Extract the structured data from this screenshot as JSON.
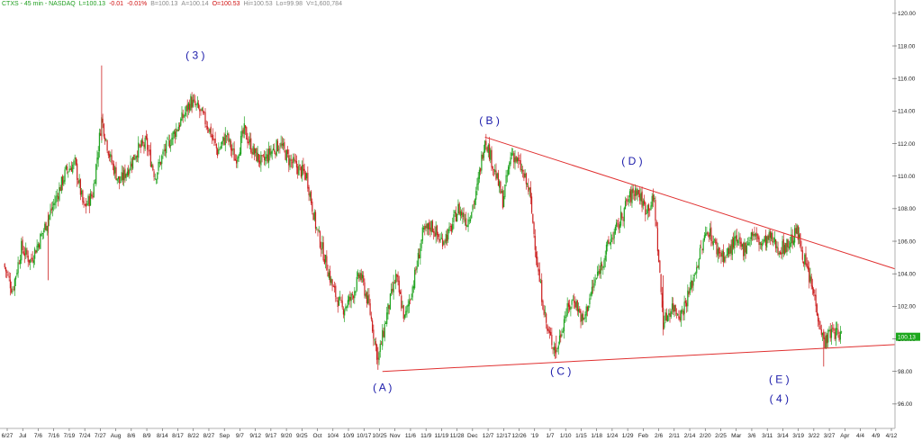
{
  "header": {
    "symbol": "CTXS - 45 min - NASDAQ",
    "last": "L=100.13",
    "change": "-0.01",
    "change_pct": "-0.01%",
    "bid": "B=100.13",
    "ask": "A=100.14",
    "open": "O=100.53",
    "high": "Hi=100.53",
    "low": "Lo=99.98",
    "volume": "V=1,600,784",
    "colors": {
      "symbol": "#1e9e1e",
      "last": "#1e9e1e",
      "change": "#d01010",
      "neutral": "#8a8a8a",
      "open": "#d01010"
    }
  },
  "chart_data": {
    "type": "candlestick",
    "y_axis": {
      "side": "right",
      "ylim": [
        94.5,
        120.6
      ],
      "ticks": [
        "96.00",
        "98.00",
        "100.00",
        "102.00",
        "104.00",
        "106.00",
        "108.00",
        "110.00",
        "112.00",
        "114.00",
        "116.00",
        "118.00",
        "120.00"
      ]
    },
    "last_price_label": "100.13",
    "x_ticks": [
      "6/27",
      "Jul",
      "7/6",
      "7/16",
      "7/19",
      "7/24",
      "7/27",
      "Aug",
      "8/6",
      "8/9",
      "8/14",
      "8/17",
      "8/22",
      "8/27",
      "Sep",
      "9/7",
      "9/12",
      "9/17",
      "9/20",
      "9/25",
      "Oct",
      "10/4",
      "10/9",
      "10/17",
      "10/25",
      "Nov",
      "11/6",
      "11/9",
      "11/19",
      "11/28",
      "Dec",
      "12/7",
      "12/17",
      "12/26",
      "'19",
      "1/7",
      "1/10",
      "1/15",
      "1/18",
      "1/24",
      "1/29",
      "Feb",
      "2/6",
      "2/11",
      "2/14",
      "2/20",
      "2/25",
      "Mar",
      "3/6",
      "3/11",
      "3/14",
      "3/19",
      "3/22",
      "3/27",
      "Apr",
      "4/4",
      "4/9",
      "4/12"
    ],
    "x_index_range": [
      0,
      100
    ],
    "price_path": [
      [
        0,
        104.6
      ],
      [
        1,
        103.0
      ],
      [
        2,
        105.6
      ],
      [
        3,
        104.8
      ],
      [
        4,
        106.0
      ],
      [
        5,
        107.4
      ],
      [
        6,
        108.8
      ],
      [
        7,
        110.3
      ],
      [
        8,
        110.8
      ],
      [
        9,
        108.0
      ],
      [
        10,
        108.9
      ],
      [
        11,
        113.5
      ],
      [
        12,
        111.0
      ],
      [
        13,
        109.6
      ],
      [
        14,
        110.5
      ],
      [
        15,
        111.6
      ],
      [
        16,
        112.0
      ],
      [
        17,
        110.0
      ],
      [
        18,
        111.5
      ],
      [
        19,
        112.5
      ],
      [
        20,
        113.5
      ],
      [
        21,
        114.6
      ],
      [
        22,
        114.0
      ],
      [
        23,
        113.0
      ],
      [
        24,
        111.5
      ],
      [
        25,
        112.5
      ],
      [
        26,
        111.0
      ],
      [
        27,
        112.8
      ],
      [
        28,
        111.5
      ],
      [
        29,
        110.8
      ],
      [
        30,
        111.5
      ],
      [
        31,
        112.0
      ],
      [
        32,
        111.0
      ],
      [
        33,
        110.5
      ],
      [
        34,
        110.0
      ],
      [
        35,
        107.0
      ],
      [
        36,
        105.0
      ],
      [
        37,
        103.0
      ],
      [
        38,
        101.8
      ],
      [
        39,
        102.5
      ],
      [
        40,
        104.0
      ],
      [
        41,
        102.0
      ],
      [
        42,
        98.7
      ],
      [
        43,
        101.5
      ],
      [
        44,
        103.8
      ],
      [
        45,
        101.2
      ],
      [
        46,
        103.5
      ],
      [
        47,
        106.4
      ],
      [
        48,
        107.0
      ],
      [
        49,
        106.0
      ],
      [
        50,
        106.5
      ],
      [
        51,
        108.0
      ],
      [
        52,
        107.2
      ],
      [
        53,
        108.8
      ],
      [
        54,
        112.4
      ],
      [
        55,
        110.5
      ],
      [
        56,
        108.5
      ],
      [
        57,
        111.5
      ],
      [
        58,
        110.5
      ],
      [
        59,
        109.0
      ],
      [
        60,
        104.0
      ],
      [
        61,
        100.5
      ],
      [
        62,
        99.2
      ],
      [
        63,
        101.5
      ],
      [
        64,
        102.5
      ],
      [
        65,
        101.0
      ],
      [
        66,
        103.0
      ],
      [
        67,
        104.5
      ],
      [
        68,
        106.0
      ],
      [
        69,
        107.0
      ],
      [
        70,
        108.5
      ],
      [
        71,
        109.2
      ],
      [
        72,
        108.0
      ],
      [
        73,
        108.5
      ],
      [
        74,
        101.0
      ],
      [
        75,
        102.0
      ],
      [
        76,
        101.5
      ],
      [
        77,
        103.0
      ],
      [
        78,
        105.0
      ],
      [
        79,
        106.8
      ],
      [
        80,
        105.5
      ],
      [
        81,
        105.0
      ],
      [
        82,
        106.0
      ],
      [
        83,
        105.5
      ],
      [
        84,
        106.5
      ],
      [
        85,
        105.8
      ],
      [
        86,
        106.2
      ],
      [
        87,
        105.5
      ],
      [
        88,
        105.8
      ],
      [
        89,
        106.6
      ],
      [
        90,
        104.5
      ],
      [
        91,
        102.5
      ],
      [
        92,
        99.8
      ],
      [
        93,
        100.5
      ],
      [
        94,
        100.13
      ]
    ],
    "spikes": [
      {
        "x": 11,
        "high": 116.8,
        "low": 112.2
      },
      {
        "x": 5,
        "high": 107.8,
        "low": 103.6
      },
      {
        "x": 42,
        "high": 99.5,
        "low": 98.1
      },
      {
        "x": 62,
        "high": 100.2,
        "low": 98.8
      },
      {
        "x": 92,
        "high": 100.6,
        "low": 98.3
      },
      {
        "x": 74,
        "high": 103.9,
        "low": 100.6
      }
    ],
    "trendlines": [
      {
        "name": "upper",
        "from": [
          54,
          112.4
        ],
        "to": [
          100,
          104.3
        ],
        "color": "#e03030"
      },
      {
        "name": "lower",
        "from": [
          42.5,
          98.0
        ],
        "to": [
          100,
          99.65
        ],
        "color": "#e03030"
      }
    ],
    "wave_labels": [
      {
        "text": "( 3 )",
        "x": 21.5,
        "y": 117.2
      },
      {
        "text": "( B )",
        "x": 54.5,
        "y": 113.2
      },
      {
        "text": "( D )",
        "x": 70.5,
        "y": 110.7
      },
      {
        "text": "( A )",
        "x": 42.5,
        "y": 96.8
      },
      {
        "text": "( C )",
        "x": 62.5,
        "y": 97.8
      },
      {
        "text": "( E )",
        "x": 87.0,
        "y": 97.3
      },
      {
        "text": "( 4 )",
        "x": 87.0,
        "y": 96.1
      }
    ],
    "colors": {
      "up": "#1fa31f",
      "down": "#cc2222",
      "trend": "#e03030",
      "wave": "#1a1aaa",
      "last_bg": "#1ea81e",
      "axis": "#b0b0b0"
    }
  }
}
